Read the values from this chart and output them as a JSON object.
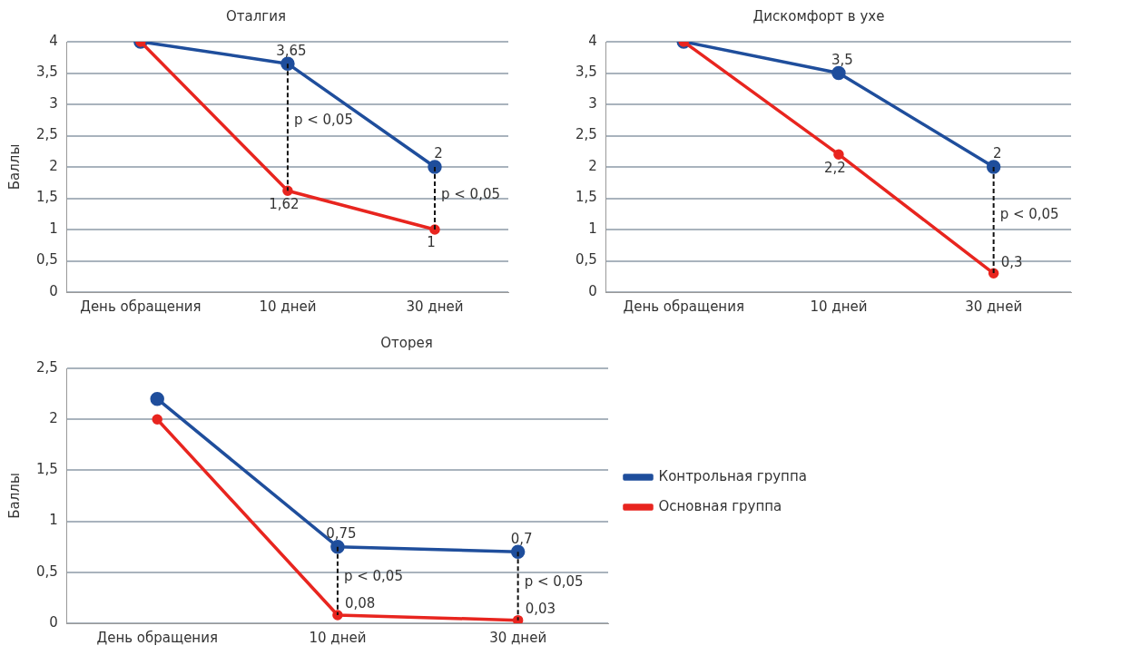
{
  "chart_data": [
    {
      "type": "line",
      "title": "Оталгия",
      "ylabel": "Баллы",
      "categories": [
        "День обращения",
        "10 дней",
        "30 дней"
      ],
      "ylim": [
        0,
        4
      ],
      "yticks": [
        0,
        {
          "value": 0.5,
          "label": "0,5"
        },
        1,
        {
          "value": 1.5,
          "label": "1,5"
        },
        2,
        {
          "value": 2.5,
          "label": "2,5"
        },
        3,
        {
          "value": 3.5,
          "label": "3,5"
        },
        4
      ],
      "grid": "y",
      "legend": false,
      "marker": "circle",
      "line_style": "solid",
      "series": [
        {
          "color": "#1f4e9c",
          "values": [
            4,
            3.65,
            2
          ],
          "value_labels": [
            null,
            "3,65",
            "2"
          ]
        },
        {
          "color": "#e8251f",
          "values": [
            4,
            1.62,
            1
          ],
          "value_labels": [
            null,
            "1,62",
            "1"
          ]
        }
      ],
      "annotations": [
        "p < 0,05",
        "p < 0,05"
      ]
    },
    {
      "type": "line",
      "title": "Дискомфорт в ухе",
      "categories": [
        "День обращения",
        "10 дней",
        "30 дней"
      ],
      "ylim": [
        0,
        4
      ],
      "yticks": [
        0,
        {
          "value": 0.5,
          "label": "0,5"
        },
        1,
        {
          "value": 1.5,
          "label": "1,5"
        },
        2,
        {
          "value": 2.5,
          "label": "2,5"
        },
        3,
        {
          "value": 3.5,
          "label": "3,5"
        },
        4
      ],
      "grid": "y",
      "legend": false,
      "marker": "circle",
      "line_style": "solid",
      "series": [
        {
          "color": "#1f4e9c",
          "values": [
            4,
            3.5,
            2
          ],
          "value_labels": [
            null,
            "3,5",
            "2"
          ]
        },
        {
          "color": "#e8251f",
          "values": [
            4,
            2.2,
            0.3
          ],
          "value_labels": [
            null,
            "2,2",
            "0,3"
          ]
        }
      ],
      "annotations": [
        "p < 0,05"
      ]
    },
    {
      "type": "line",
      "title": "Оторея",
      "ylabel": "Баллы",
      "categories": [
        "День обращения",
        "10 дней",
        "30 дней"
      ],
      "ylim": [
        0,
        2.5
      ],
      "yticks": [
        0,
        {
          "value": 0.5,
          "label": "0,5"
        },
        1,
        {
          "value": 1.5,
          "label": "1,5"
        },
        2,
        {
          "value": 2.5,
          "label": "2,5"
        }
      ],
      "grid": "y",
      "legend": "right",
      "marker": "circle",
      "line_style": "solid",
      "series": [
        {
          "name": "Контрольная группа",
          "color": "#1f4e9c",
          "values": [
            2.2,
            0.75,
            0.7
          ],
          "value_labels": [
            null,
            "0,75",
            "0,7"
          ]
        },
        {
          "name": "Основная группа",
          "color": "#e8251f",
          "values": [
            2,
            0.08,
            0.03
          ],
          "value_labels": [
            null,
            "0,08",
            "0,03"
          ]
        }
      ],
      "annotations": [
        "p < 0,05",
        "p < 0,05"
      ]
    }
  ]
}
